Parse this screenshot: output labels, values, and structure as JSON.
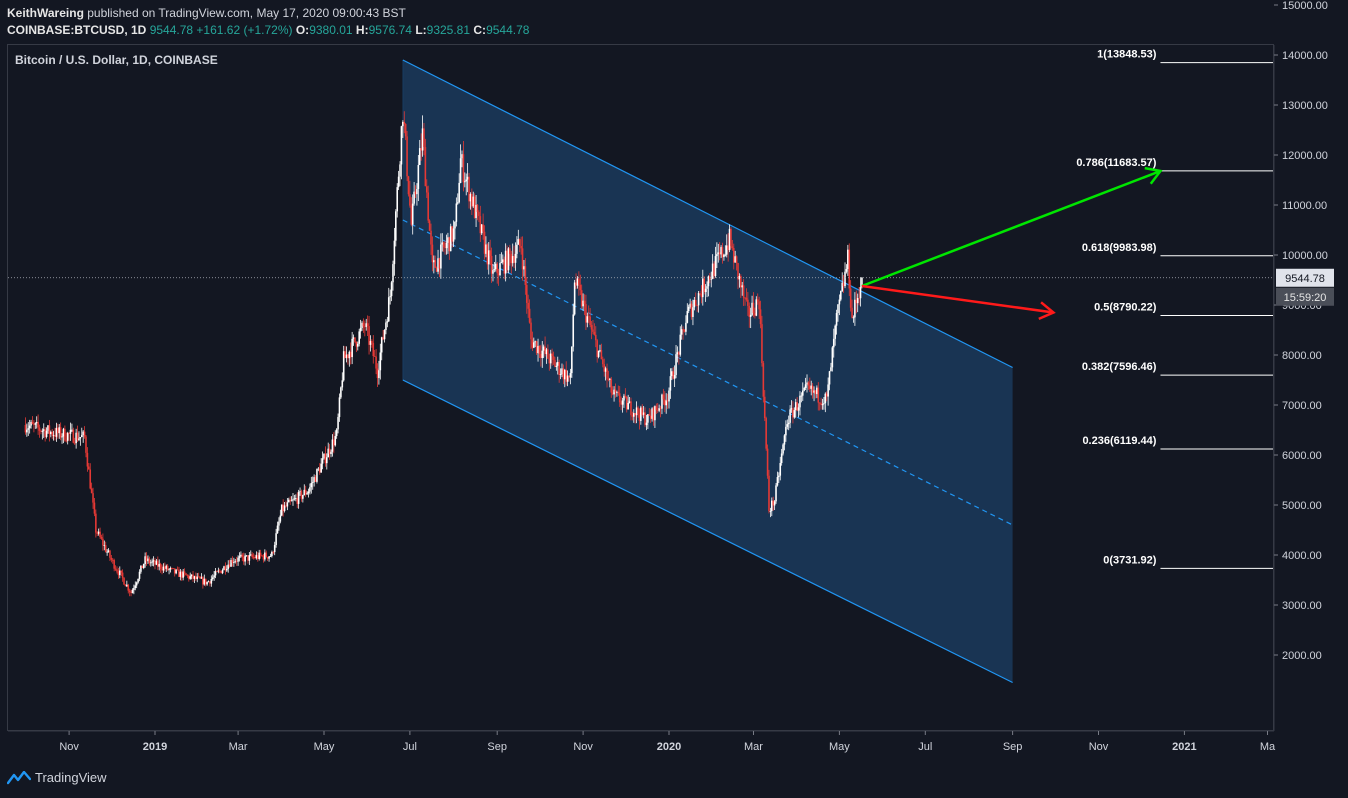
{
  "header": {
    "author": "KeithWareing",
    "published_text": " published on TradingView.com, May 17, 2020 09:00:43 BST"
  },
  "ticker": {
    "symbol": "COINBASE:BTCUSD, 1D",
    "last": "9544.78",
    "change": "+161.62 (+1.72%)",
    "o_label": "O:",
    "o_value": "9380.01",
    "h_label": "H:",
    "h_value": "9576.74",
    "l_label": "L:",
    "l_value": "9325.81",
    "c_label": "C:",
    "c_value": "9544.78"
  },
  "chart_title": "Bitcoin / U.S. Dollar, 1D, COINBASE",
  "price_tag": {
    "value": "9544.78",
    "timer": "15:59:20"
  },
  "footer": {
    "brand": "TradingView"
  },
  "colors": {
    "background": "#131722",
    "bull": "#ffffff",
    "bear": "#e53935",
    "channel_line": "#2196f3",
    "channel_fill": "#1b3a5c",
    "fib_line": "#ffffff",
    "arrow_up": "#00e600",
    "arrow_down": "#ff1a1a"
  },
  "chart_data": {
    "type": "candlestick",
    "title": "Bitcoin / U.S. Dollar, 1D, COINBASE",
    "x_ticks": [
      {
        "label": "Nov",
        "date": "2018-11-01"
      },
      {
        "label": "2019",
        "date": "2019-01-01"
      },
      {
        "label": "Mar",
        "date": "2019-03-01"
      },
      {
        "label": "May",
        "date": "2019-05-01"
      },
      {
        "label": "Jul",
        "date": "2019-07-01"
      },
      {
        "label": "Sep",
        "date": "2019-09-01"
      },
      {
        "label": "Nov",
        "date": "2019-11-01"
      },
      {
        "label": "2020",
        "date": "2020-01-01"
      },
      {
        "label": "Mar",
        "date": "2020-03-01"
      },
      {
        "label": "May",
        "date": "2020-05-01"
      },
      {
        "label": "Jul",
        "date": "2020-07-01"
      },
      {
        "label": "Sep",
        "date": "2020-09-01"
      },
      {
        "label": "Nov",
        "date": "2020-11-01"
      },
      {
        "label": "2021",
        "date": "2021-01-01"
      },
      {
        "label": "Ma",
        "date": "2021-03-01"
      }
    ],
    "y_ticks": [
      2000,
      3000,
      4000,
      5000,
      6000,
      7000,
      8000,
      9000,
      10000,
      11000,
      12000,
      13000,
      14000,
      15000
    ],
    "y_tick_labels": [
      "2000.00",
      "3000.00",
      "4000.00",
      "5000.00",
      "6000.00",
      "7000.00",
      "8000.00",
      "9000.00",
      "10000.00",
      "11000.00",
      "12000.00",
      "13000.00",
      "14000.00",
      "15000.00"
    ],
    "price_anchors": [
      {
        "date": "2018-10-01",
        "price": 6600
      },
      {
        "date": "2018-10-20",
        "price": 6450
      },
      {
        "date": "2018-11-12",
        "price": 6350
      },
      {
        "date": "2018-11-20",
        "price": 4500
      },
      {
        "date": "2018-12-01",
        "price": 3900
      },
      {
        "date": "2018-12-15",
        "price": 3250
      },
      {
        "date": "2018-12-25",
        "price": 3900
      },
      {
        "date": "2019-01-15",
        "price": 3650
      },
      {
        "date": "2019-02-07",
        "price": 3450
      },
      {
        "date": "2019-02-25",
        "price": 3900
      },
      {
        "date": "2019-03-25",
        "price": 4000
      },
      {
        "date": "2019-04-01",
        "price": 4900
      },
      {
        "date": "2019-04-20",
        "price": 5300
      },
      {
        "date": "2019-05-10",
        "price": 6400
      },
      {
        "date": "2019-05-15",
        "price": 7900
      },
      {
        "date": "2019-05-30",
        "price": 8600
      },
      {
        "date": "2019-06-08",
        "price": 7700
      },
      {
        "date": "2019-06-17",
        "price": 9200
      },
      {
        "date": "2019-06-26",
        "price": 12900
      },
      {
        "date": "2019-07-02",
        "price": 10600
      },
      {
        "date": "2019-07-10",
        "price": 12400
      },
      {
        "date": "2019-07-17",
        "price": 9700
      },
      {
        "date": "2019-08-02",
        "price": 10500
      },
      {
        "date": "2019-08-06",
        "price": 11900
      },
      {
        "date": "2019-08-29",
        "price": 9600
      },
      {
        "date": "2019-09-18",
        "price": 10200
      },
      {
        "date": "2019-09-25",
        "price": 8300
      },
      {
        "date": "2019-10-23",
        "price": 7500
      },
      {
        "date": "2019-10-26",
        "price": 9500
      },
      {
        "date": "2019-11-22",
        "price": 7200
      },
      {
        "date": "2019-12-17",
        "price": 6700
      },
      {
        "date": "2019-12-31",
        "price": 7200
      },
      {
        "date": "2020-01-14",
        "price": 8800
      },
      {
        "date": "2020-02-13",
        "price": 10300
      },
      {
        "date": "2020-02-26",
        "price": 8800
      },
      {
        "date": "2020-03-05",
        "price": 9100
      },
      {
        "date": "2020-03-12",
        "price": 4900
      },
      {
        "date": "2020-03-16",
        "price": 5100
      },
      {
        "date": "2020-03-25",
        "price": 6700
      },
      {
        "date": "2020-04-08",
        "price": 7300
      },
      {
        "date": "2020-04-22",
        "price": 7100
      },
      {
        "date": "2020-04-29",
        "price": 8700
      },
      {
        "date": "2020-05-07",
        "price": 9900
      },
      {
        "date": "2020-05-10",
        "price": 8700
      },
      {
        "date": "2020-05-17",
        "price": 9544.78
      }
    ],
    "last_price": 9544.78,
    "channel": {
      "upper_start": {
        "date": "2019-06-26",
        "price": 13900
      },
      "upper_end": {
        "date": "2020-09-01",
        "price": 7750
      },
      "lower_start": {
        "date": "2019-06-26",
        "price": 7500
      },
      "lower_end": {
        "date": "2020-09-01",
        "price": 1450
      },
      "shade_start": "2019-06-26",
      "shade_end": "2020-09-01"
    },
    "fibonacci": [
      {
        "label": "1(13848.53)",
        "value": 13848.53
      },
      {
        "label": "0.786(11683.57)",
        "value": 11683.57
      },
      {
        "label": "0.618(9983.98)",
        "value": 9983.98
      },
      {
        "label": "0.5(8790.22)",
        "value": 8790.22
      },
      {
        "label": "0.382(7596.46)",
        "value": 7596.46
      },
      {
        "label": "0.236(6119.44)",
        "value": 6119.44
      },
      {
        "label": "0(3731.92)",
        "value": 3731.92
      }
    ],
    "fib_x_start": "2020-12-15",
    "fib_x_end": "2021-03-15",
    "arrows": [
      {
        "name": "bullish-arrow",
        "from": {
          "date": "2020-05-17",
          "price": 9380
        },
        "to": {
          "date": "2020-12-15",
          "price": 11680
        }
      },
      {
        "name": "bearish-arrow",
        "from": {
          "date": "2020-05-17",
          "price": 9380
        },
        "to": {
          "date": "2020-09-30",
          "price": 8850
        }
      }
    ]
  }
}
